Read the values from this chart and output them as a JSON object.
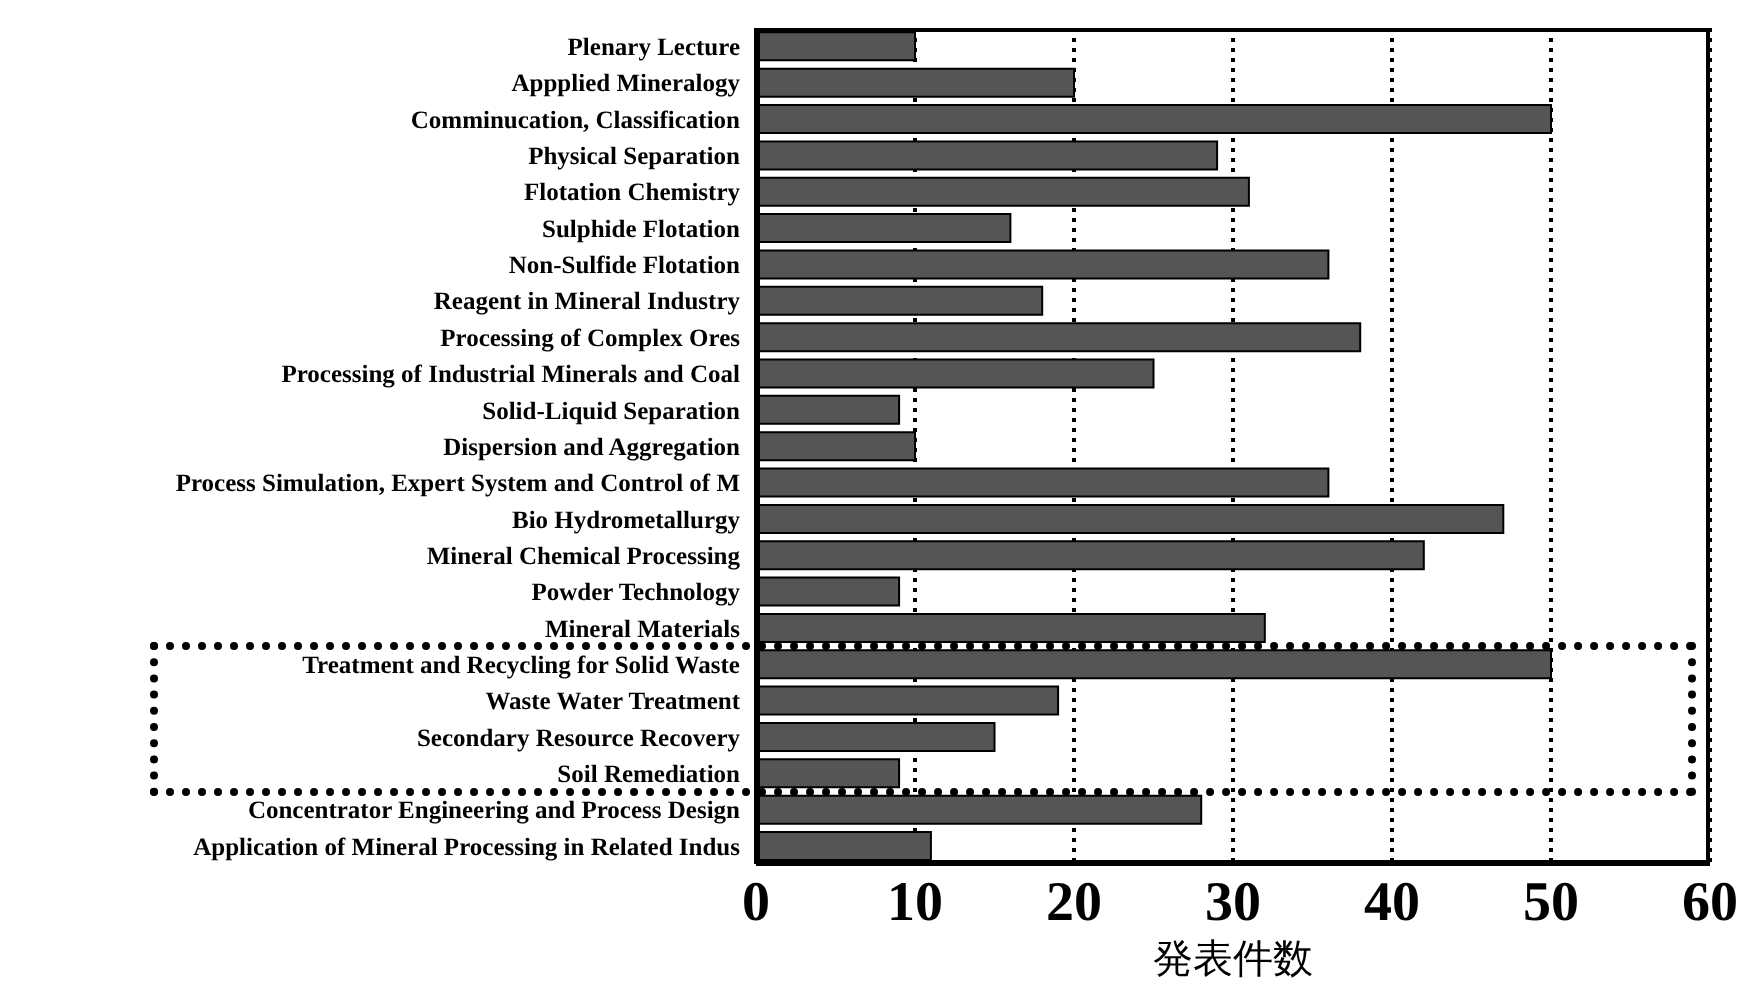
{
  "chart_data": {
    "type": "bar",
    "orientation": "horizontal",
    "xlabel": "発表件数",
    "categories": [
      "Plenary Lecture",
      "Appplied Mineralogy",
      "Comminucation, Classification",
      "Physical Separation",
      "Flotation Chemistry",
      "Sulphide Flotation",
      "Non-Sulfide Flotation",
      "Reagent in Mineral Industry",
      "Processing of Complex Ores",
      "Processing of Industrial Minerals and Coal",
      "Solid-Liquid Separation",
      "Dispersion and Aggregation",
      "Process Simulation, Expert System and Control of M",
      "Bio Hydrometallurgy",
      "Mineral Chemical Processing",
      "Powder Technology",
      "Mineral Materials",
      "Treatment and Recycling for Solid Waste",
      "Waste Water Treatment",
      "Secondary Resource Recovery",
      "Soil Remediation",
      "Concentrator Engineering and Process Design",
      "Application of Mineral Processing in Related Indus"
    ],
    "values": [
      10,
      20,
      50,
      29,
      31,
      16,
      36,
      18,
      38,
      25,
      9,
      10,
      36,
      47,
      42,
      9,
      32,
      50,
      19,
      15,
      9,
      28,
      11
    ],
    "color": "#555555",
    "xlim": [
      0,
      60
    ],
    "xticks": [
      0,
      10,
      20,
      30,
      40,
      50,
      60
    ],
    "grid": "x"
  }
}
